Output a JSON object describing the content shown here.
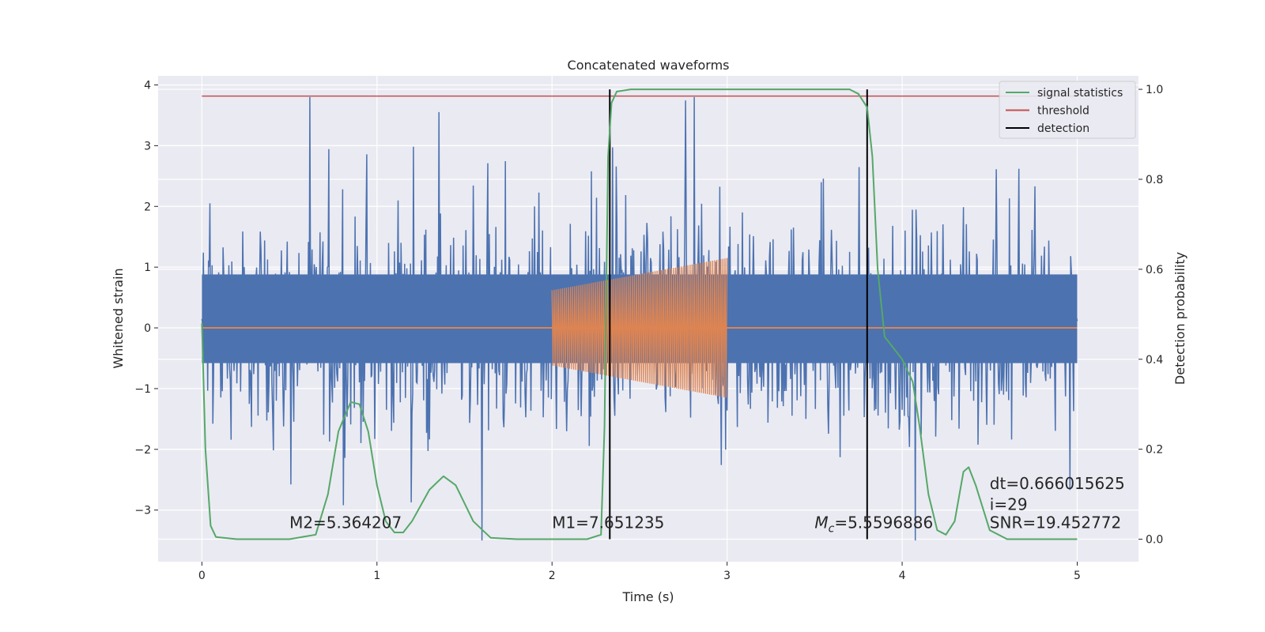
{
  "chart_data": {
    "type": "line",
    "title": "Concatenated waveforms",
    "xlabel": "Time (s)",
    "ylabel": "Whitened strain",
    "ylabel_right": "Detection probability",
    "xlim": [
      -0.25,
      5.35
    ],
    "ylim": [
      -3.85,
      4.15
    ],
    "ylim_right": [
      -0.05,
      1.03
    ],
    "xticks": [
      0,
      1,
      2,
      3,
      4,
      5
    ],
    "yticks": [
      -3,
      -2,
      -1,
      0,
      1,
      2,
      3,
      4
    ],
    "yticks_right": [
      0.0,
      0.2,
      0.4,
      0.6,
      0.8,
      1.0
    ],
    "grid": true,
    "legend_position": "top-right",
    "colors": {
      "noise": "#4c72b0",
      "signal": "#dd8452",
      "statistics": "#55a868",
      "threshold": "#c44e52",
      "detection": "#000000",
      "background": "#eaeaf2",
      "grid": "#ffffff"
    },
    "series": [
      {
        "name": "signal statistics",
        "axis": "right",
        "x": [
          0,
          0.02,
          0.05,
          0.08,
          0.2,
          0.5,
          0.65,
          0.72,
          0.78,
          0.85,
          0.9,
          0.95,
          1.0,
          1.05,
          1.1,
          1.15,
          1.2,
          1.3,
          1.38,
          1.45,
          1.55,
          1.65,
          1.8,
          2.0,
          2.2,
          2.28,
          2.3,
          2.32,
          2.34,
          2.37,
          2.45,
          3.0,
          3.7,
          3.75,
          3.8,
          3.83,
          3.86,
          3.9,
          4.0,
          4.06,
          4.1,
          4.15,
          4.2,
          4.25,
          4.3,
          4.35,
          4.38,
          4.42,
          4.5,
          4.6,
          4.8,
          5.0
        ],
        "y": [
          0.48,
          0.2,
          0.03,
          0.005,
          0.0,
          0.0,
          0.01,
          0.1,
          0.24,
          0.305,
          0.3,
          0.24,
          0.12,
          0.04,
          0.015,
          0.015,
          0.04,
          0.11,
          0.14,
          0.12,
          0.04,
          0.003,
          0.0,
          0.0,
          0.0,
          0.01,
          0.25,
          0.85,
          0.97,
          0.995,
          1.0,
          1.0,
          1.0,
          0.99,
          0.96,
          0.85,
          0.6,
          0.45,
          0.4,
          0.35,
          0.25,
          0.1,
          0.02,
          0.01,
          0.04,
          0.15,
          0.16,
          0.12,
          0.02,
          0.0,
          0.0,
          0.0
        ]
      },
      {
        "name": "threshold",
        "axis": "right",
        "x": [
          0,
          5
        ],
        "y": [
          0.985,
          0.985
        ]
      },
      {
        "name": "detection",
        "axis": "left",
        "x_positions": [
          2.33,
          3.8
        ]
      }
    ],
    "noise": {
      "x_range": [
        0,
        5
      ],
      "typical_amplitude": 1.0,
      "peak_max": 3.8,
      "peak_min": -3.5,
      "num_samples": 1200
    },
    "signal": {
      "x_range": [
        2.0,
        3.0
      ],
      "amplitude_start": 0.62,
      "amplitude_end": 1.15,
      "cycles": 85
    },
    "annotations": [
      {
        "text": "M2=5.364207",
        "x": 0.5,
        "y": -3.3
      },
      {
        "text": "M1=7.651235",
        "x": 2.0,
        "y": -3.3
      },
      {
        "text": "=5.5596886",
        "prefix": "M",
        "sub": "c",
        "x": 3.5,
        "y": -3.3
      },
      {
        "text": "dt=0.666015625",
        "x": 4.5,
        "y": -2.65
      },
      {
        "text": " i=29",
        "x": 4.5,
        "y": -3.0
      },
      {
        "text": "SNR=19.452772",
        "x": 4.5,
        "y": -3.3
      }
    ]
  }
}
